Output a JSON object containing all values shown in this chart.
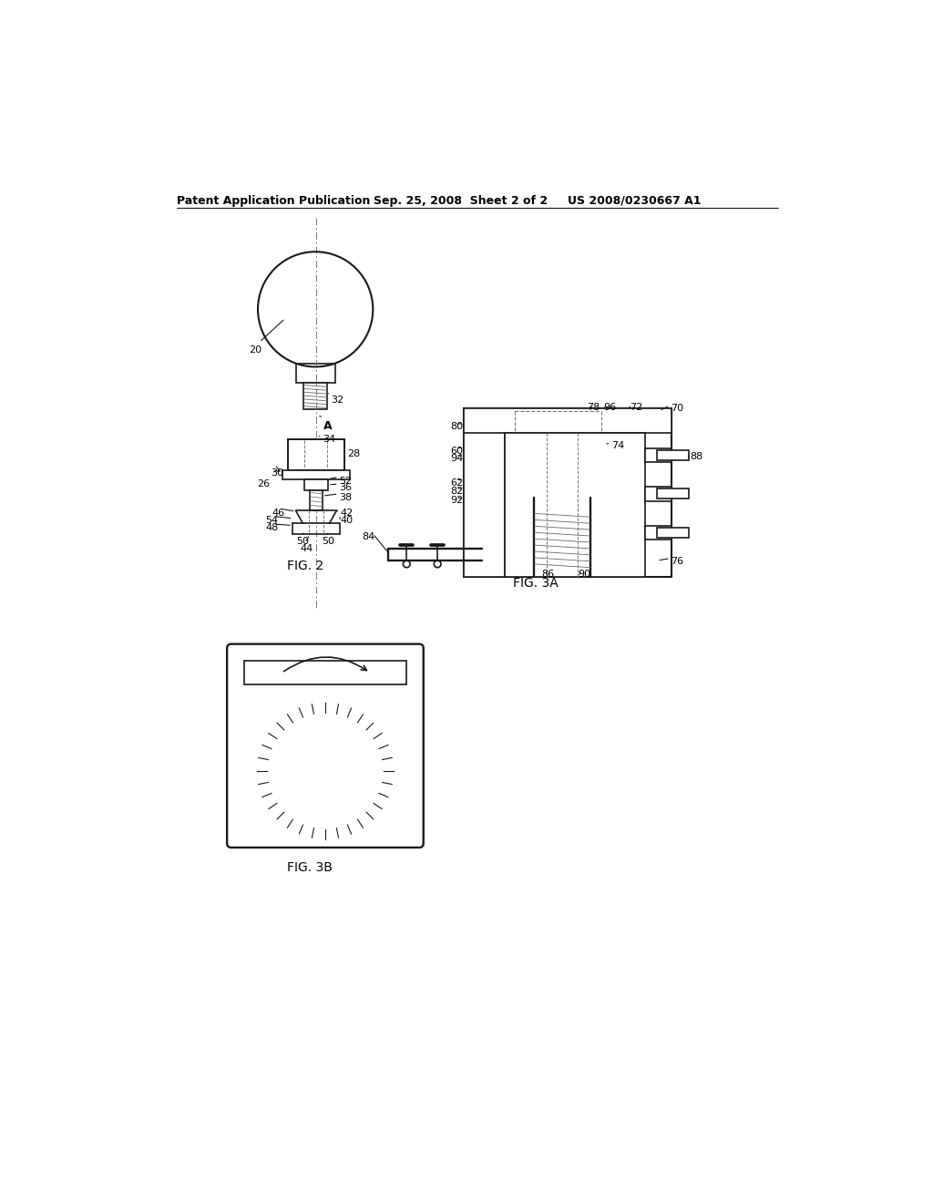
{
  "bg_color": "#f0f0f0",
  "page_bg": "#ffffff",
  "header_text1": "Patent Application Publication",
  "header_text2": "Sep. 25, 2008  Sheet 2 of 2",
  "header_text3": "US 2008/0230667 A1",
  "fig2_label": "FIG. 2",
  "fig3a_label": "FIG. 3A",
  "fig3b_label": "FIG. 3B",
  "line_color": "#1a1a1a",
  "line_width": 1.2
}
